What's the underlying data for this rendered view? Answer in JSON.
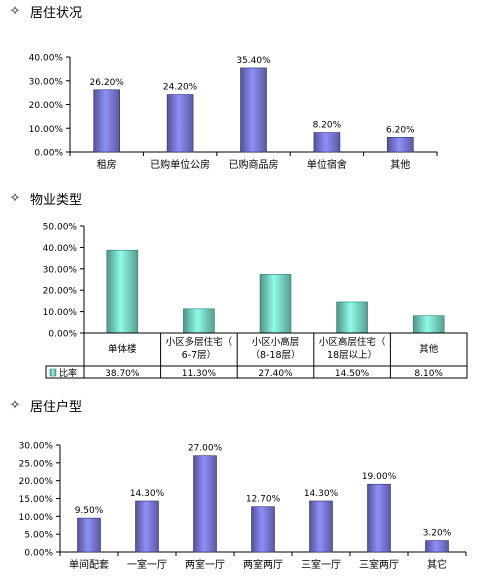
{
  "chart_data": [
    {
      "title": "居住状况",
      "type": "bar",
      "categories": [
        "租房",
        "已购单位公房",
        "已购商品房",
        "单位宿舍",
        "其他"
      ],
      "values": [
        26.2,
        24.2,
        35.4,
        8.2,
        6.2
      ],
      "data_labels": [
        "26.20%",
        "24.20%",
        "35.40%",
        "8.20%",
        "6.20%"
      ],
      "ylim": [
        0,
        40
      ],
      "yticks": [
        "0.00%",
        "10.00%",
        "20.00%",
        "30.00%",
        "40.00%"
      ],
      "bar_color": "#8080e0",
      "grid": false
    },
    {
      "title": "物业类型",
      "type": "bar",
      "categories": [
        "单体楼",
        "小区多层住宅（6-7层）",
        "小区小高层（8-18层）",
        "小区高层住宅（18层以上）",
        "其他"
      ],
      "values": [
        38.7,
        11.3,
        27.4,
        14.5,
        8.1
      ],
      "data_labels": [
        "38.70%",
        "11.30%",
        "27.40%",
        "14.50%",
        "8.10%"
      ],
      "ylim": [
        0,
        50
      ],
      "yticks": [
        "0.00%",
        "10.00%",
        "20.00%",
        "30.00%",
        "40.00%",
        "50.00%"
      ],
      "series": [
        {
          "name": "比率",
          "values": [
            38.7,
            11.3,
            27.4,
            14.5,
            8.1
          ]
        }
      ],
      "bar_color": "#7fe0d0",
      "legend": "data-table",
      "grid": false
    },
    {
      "title": "居住户型",
      "type": "bar",
      "categories": [
        "单间配套",
        "一室一厅",
        "两室一厅",
        "两室两厅",
        "三室一厅",
        "三室两厅",
        "其它"
      ],
      "values": [
        9.5,
        14.3,
        27.0,
        12.7,
        14.3,
        19.0,
        3.2
      ],
      "data_labels": [
        "9.50%",
        "14.30%",
        "27.00%",
        "12.70%",
        "14.30%",
        "19.00%",
        "3.20%"
      ],
      "ylim": [
        0,
        30
      ],
      "yticks": [
        "0.00%",
        "5.00%",
        "10.00%",
        "15.00%",
        "20.00%",
        "25.00%",
        "30.00%"
      ],
      "bar_color": "#8080e0",
      "grid": false
    }
  ],
  "star_icon": "✧"
}
